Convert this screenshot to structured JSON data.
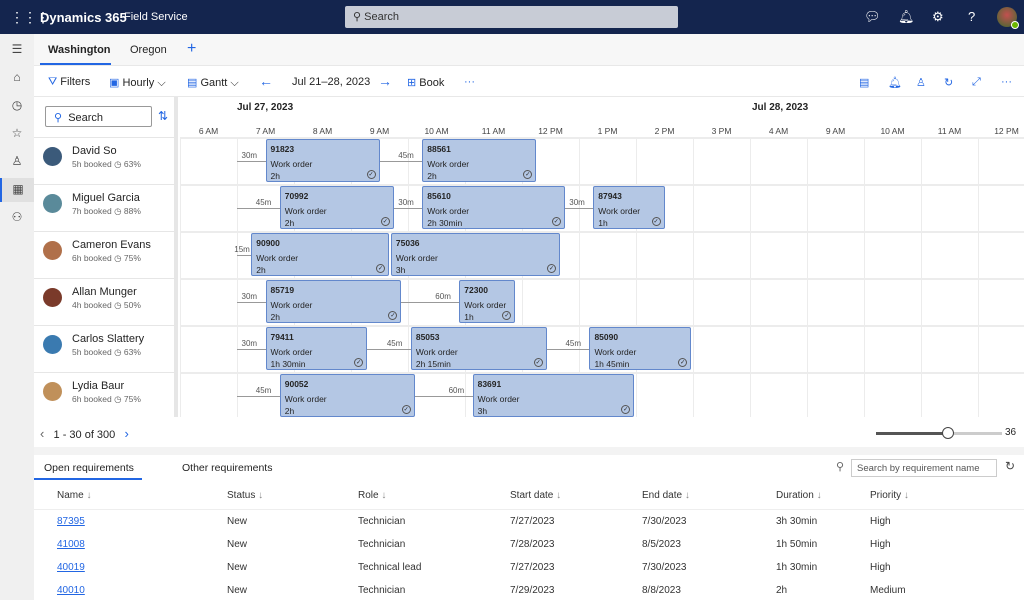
{
  "header": {
    "app": "Dynamics 365",
    "module": "Field Service",
    "search_placeholder": "Search"
  },
  "tabs": [
    {
      "label": "Washington",
      "active": true
    },
    {
      "label": "Oregon",
      "active": false
    }
  ],
  "toolbar": {
    "filters": "Filters",
    "hourly": "Hourly",
    "gantt": "Gantt",
    "date_range": "Jul 21–28, 2023",
    "book": "Book"
  },
  "resource_search": "Search",
  "days": [
    "Jul 27, 2023",
    "Jul 28, 2023"
  ],
  "hours": [
    "6 AM",
    "7 AM",
    "8 AM",
    "9 AM",
    "10 AM",
    "11 AM",
    "12 PM",
    "1 PM",
    "2 PM",
    "3 PM",
    "4 AM",
    "9 AM",
    "10 AM",
    "11 AM",
    "12 PM"
  ],
  "resources": [
    {
      "name": "David So",
      "booked": "5h booked",
      "util": "63%",
      "avatar_color": "#3b5a7a",
      "bookings": [
        {
          "id": "91823",
          "type": "Work order",
          "duration": "2h",
          "travel": "30m",
          "start": "7:30",
          "end": "9:30"
        },
        {
          "id": "88561",
          "type": "Work order",
          "duration": "2h",
          "travel": "45m",
          "start": "10:15",
          "end": "12:15"
        }
      ]
    },
    {
      "name": "Miguel Garcia",
      "booked": "7h booked",
      "util": "88%",
      "avatar_color": "#5a8a9a",
      "bookings": [
        {
          "id": "70992",
          "type": "Work order",
          "duration": "2h",
          "travel": "45m",
          "start": "7:45",
          "end": "9:45"
        },
        {
          "id": "85610",
          "type": "Work order",
          "duration": "2h 30min",
          "travel": "30m",
          "start": "10:15",
          "end": "12:45"
        },
        {
          "id": "87943",
          "type": "Work order",
          "duration": "1h",
          "travel": "30m",
          "start": "13:15",
          "end": "14:30"
        }
      ]
    },
    {
      "name": "Cameron Evans",
      "booked": "6h booked",
      "util": "75%",
      "avatar_color": "#b0704a",
      "bookings": [
        {
          "id": "90900",
          "type": "Work order",
          "duration": "2h",
          "travel": "15m",
          "start": "7:15",
          "end": "9:40"
        },
        {
          "id": "75036",
          "type": "Work order",
          "duration": "3h",
          "travel": "",
          "start": "9:42",
          "end": "12:40"
        }
      ]
    },
    {
      "name": "Allan Munger",
      "booked": "4h booked",
      "util": "50%",
      "avatar_color": "#7a3a2a",
      "bookings": [
        {
          "id": "85719",
          "type": "Work order",
          "duration": "2h",
          "travel": "30m",
          "start": "7:30",
          "end": "9:53"
        },
        {
          "id": "72300",
          "type": "Work order",
          "duration": "1h",
          "travel": "60m",
          "start": "10:54",
          "end": "11:53"
        }
      ]
    },
    {
      "name": "Carlos Slattery",
      "booked": "5h booked",
      "util": "63%",
      "avatar_color": "#3a7ab0",
      "bookings": [
        {
          "id": "79411",
          "type": "Work order",
          "duration": "1h 30min",
          "travel": "30m",
          "start": "7:30",
          "end": "9:17"
        },
        {
          "id": "85053",
          "type": "Work order",
          "duration": "2h 15min",
          "travel": "45m",
          "start": "10:03",
          "end": "12:26"
        },
        {
          "id": "85090",
          "type": "Work order",
          "duration": "1h 45min",
          "travel": "45m",
          "start": "13:11",
          "end": "14:58"
        }
      ]
    },
    {
      "name": "Lydia Baur",
      "booked": "6h booked",
      "util": "75%",
      "avatar_color": "#c0905a",
      "bookings": [
        {
          "id": "90052",
          "type": "Work order",
          "duration": "2h",
          "travel": "45m",
          "start": "7:45",
          "end": "10:07"
        },
        {
          "id": "83691",
          "type": "Work order",
          "duration": "3h",
          "travel": "60m",
          "start": "11:08",
          "end": "13:58"
        }
      ]
    }
  ],
  "pager": "1 - 30 of 300",
  "zoom": {
    "value": "36",
    "fraction": 0.57
  },
  "bottom_tabs": [
    {
      "label": "Open requirements",
      "active": true
    },
    {
      "label": "Other requirements",
      "active": false
    }
  ],
  "req_search_placeholder": "Search by requirement name",
  "columns": [
    "Name",
    "Status",
    "Role",
    "Start date",
    "End date",
    "Duration",
    "Priority"
  ],
  "requirements": [
    [
      "87395",
      "New",
      "Technician",
      "7/27/2023",
      "7/30/2023",
      "3h 30min",
      "High"
    ],
    [
      "41008",
      "New",
      "Technician",
      "7/28/2023",
      "8/5/2023",
      "1h 50min",
      "High"
    ],
    [
      "40019",
      "New",
      "Technical lead",
      "7/27/2023",
      "7/30/2023",
      "1h 30min",
      "High"
    ],
    [
      "40010",
      "New",
      "Technician",
      "7/29/2023",
      "8/8/2023",
      "2h",
      "Medium"
    ]
  ],
  "colors": {
    "topbar": "#14254e",
    "accent": "#2266e3",
    "booking": "#b4c7e4"
  }
}
